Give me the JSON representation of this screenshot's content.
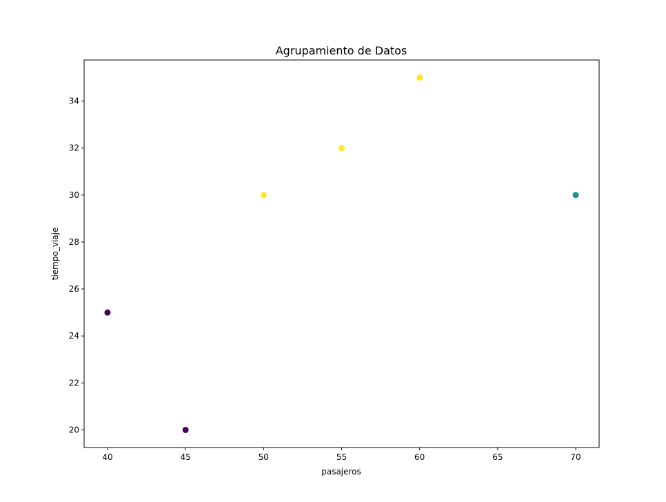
{
  "chart_data": {
    "type": "scatter",
    "title": "Agrupamiento de Datos",
    "xlabel": "pasajeros",
    "ylabel": "tiempo_viaje",
    "xlim": [
      38.5,
      71.5
    ],
    "ylim": [
      19.25,
      35.75
    ],
    "xticks": [
      40,
      45,
      50,
      55,
      60,
      65,
      70
    ],
    "yticks": [
      20,
      22,
      24,
      26,
      28,
      30,
      32,
      34
    ],
    "grid": false,
    "cluster_colors": [
      "#440154",
      "#21918c",
      "#fde725"
    ],
    "points": [
      {
        "x": 40,
        "y": 25,
        "cluster": 0
      },
      {
        "x": 45,
        "y": 20,
        "cluster": 0
      },
      {
        "x": 50,
        "y": 30,
        "cluster": 2
      },
      {
        "x": 55,
        "y": 32,
        "cluster": 2
      },
      {
        "x": 60,
        "y": 35,
        "cluster": 2
      },
      {
        "x": 70,
        "y": 30,
        "cluster": 1
      }
    ]
  }
}
